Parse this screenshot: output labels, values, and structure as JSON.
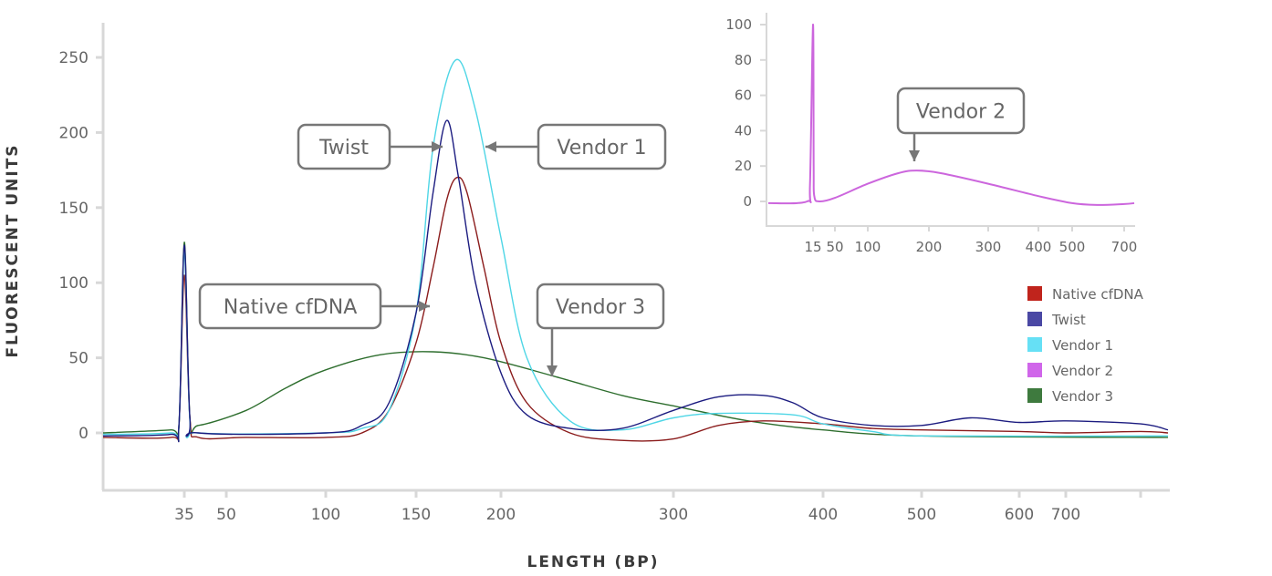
{
  "chart_data": [
    {
      "type": "line",
      "xlabel": "LENGTH (BP)",
      "ylabel": "FLUORESCENT UNITS",
      "x_scale": "nonlinear (electropherogram sizing)",
      "x_ticks": [
        "35",
        "50",
        "100",
        "150",
        "200",
        "300",
        "400",
        "500",
        "600",
        "700"
      ],
      "y_ticks": [
        "0",
        "50",
        "100",
        "150",
        "200",
        "250"
      ],
      "ylim": [
        -40,
        270
      ],
      "grid": false,
      "legend_position": "right",
      "series": [
        {
          "name": "Native cfDNA",
          "color": "#8b1c1c",
          "legend_color": "#c0241c",
          "points": [
            [
              5,
              -3
            ],
            [
              30,
              -3
            ],
            [
              33,
              5
            ],
            [
              35,
              105
            ],
            [
              37,
              10
            ],
            [
              40,
              -3
            ],
            [
              60,
              -3
            ],
            [
              100,
              -3
            ],
            [
              120,
              0
            ],
            [
              135,
              15
            ],
            [
              150,
              60
            ],
            [
              160,
              110
            ],
            [
              168,
              155
            ],
            [
              174,
              170
            ],
            [
              180,
              160
            ],
            [
              190,
              110
            ],
            [
              200,
              60
            ],
            [
              215,
              20
            ],
            [
              240,
              0
            ],
            [
              270,
              -5
            ],
            [
              300,
              -4
            ],
            [
              330,
              5
            ],
            [
              360,
              8
            ],
            [
              400,
              6
            ],
            [
              450,
              3
            ],
            [
              500,
              2
            ],
            [
              600,
              1
            ],
            [
              700,
              0
            ],
            [
              800,
              1
            ],
            [
              850,
              0
            ]
          ]
        },
        {
          "name": "Twist",
          "color": "#1c1c80",
          "legend_color": "#4a48a4",
          "points": [
            [
              5,
              -2
            ],
            [
              30,
              -1
            ],
            [
              33,
              5
            ],
            [
              35,
              125
            ],
            [
              37,
              10
            ],
            [
              40,
              0
            ],
            [
              100,
              0
            ],
            [
              120,
              5
            ],
            [
              135,
              20
            ],
            [
              150,
              80
            ],
            [
              160,
              160
            ],
            [
              168,
              208
            ],
            [
              175,
              170
            ],
            [
              185,
              100
            ],
            [
              200,
              40
            ],
            [
              215,
              12
            ],
            [
              240,
              3
            ],
            [
              270,
              3
            ],
            [
              300,
              15
            ],
            [
              330,
              24
            ],
            [
              360,
              25
            ],
            [
              380,
              20
            ],
            [
              400,
              10
            ],
            [
              450,
              5
            ],
            [
              500,
              5
            ],
            [
              550,
              10
            ],
            [
              600,
              7
            ],
            [
              700,
              8
            ],
            [
              800,
              6
            ],
            [
              850,
              2
            ]
          ]
        },
        {
          "name": "Vendor 1",
          "color": "#4fd6e6",
          "legend_color": "#66e0f5",
          "points": [
            [
              5,
              -1
            ],
            [
              30,
              0
            ],
            [
              33,
              5
            ],
            [
              35,
              120
            ],
            [
              37,
              8
            ],
            [
              40,
              0
            ],
            [
              100,
              0
            ],
            [
              120,
              3
            ],
            [
              135,
              15
            ],
            [
              150,
              80
            ],
            [
              160,
              190
            ],
            [
              173,
              248
            ],
            [
              185,
              215
            ],
            [
              200,
              130
            ],
            [
              215,
              50
            ],
            [
              240,
              8
            ],
            [
              270,
              2
            ],
            [
              300,
              10
            ],
            [
              330,
              13
            ],
            [
              380,
              12
            ],
            [
              400,
              6
            ],
            [
              450,
              1
            ],
            [
              500,
              -2
            ],
            [
              850,
              -2
            ]
          ]
        },
        {
          "name": "Vendor 2",
          "color": "#cc66dd",
          "legend_color": "#d066ea",
          "points": []
        },
        {
          "name": "Vendor 3",
          "color": "#2e6e2e",
          "legend_color": "#3e7a3e",
          "points": [
            [
              5,
              0
            ],
            [
              30,
              2
            ],
            [
              33,
              4
            ],
            [
              35,
              127
            ],
            [
              37,
              10
            ],
            [
              40,
              5
            ],
            [
              60,
              15
            ],
            [
              80,
              30
            ],
            [
              100,
              42
            ],
            [
              130,
              52
            ],
            [
              160,
              54
            ],
            [
              190,
              50
            ],
            [
              230,
              38
            ],
            [
              270,
              25
            ],
            [
              300,
              18
            ],
            [
              350,
              8
            ],
            [
              400,
              2
            ],
            [
              500,
              -2
            ],
            [
              850,
              -3
            ]
          ]
        }
      ],
      "annotations": [
        "Twist",
        "Vendor 1",
        "Native cfDNA",
        "Vendor 3"
      ]
    },
    {
      "type": "line",
      "inset": true,
      "x_ticks": [
        "15",
        "50",
        "100",
        "200",
        "300",
        "400",
        "500",
        "700"
      ],
      "y_ticks": [
        "0",
        "20",
        "40",
        "60",
        "80",
        "100"
      ],
      "ylim": [
        -12,
        105
      ],
      "series": [
        {
          "name": "Vendor 2",
          "color": "#cc66dd",
          "points": [
            [
              0,
              -1
            ],
            [
              13,
              0
            ],
            [
              14,
              10
            ],
            [
              15,
              100
            ],
            [
              16,
              20
            ],
            [
              17,
              3
            ],
            [
              25,
              0
            ],
            [
              50,
              2
            ],
            [
              100,
              10
            ],
            [
              150,
              16
            ],
            [
              180,
              17.5
            ],
            [
              220,
              16
            ],
            [
              300,
              10
            ],
            [
              400,
              3
            ],
            [
              500,
              -1
            ],
            [
              600,
              -2
            ],
            [
              700,
              -1.5
            ],
            [
              740,
              -1
            ]
          ]
        }
      ],
      "annotations": [
        "Vendor 2"
      ]
    }
  ]
}
